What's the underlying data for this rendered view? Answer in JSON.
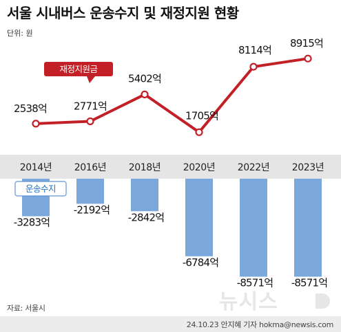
{
  "header": {
    "title": "서울 시내버스 운송수지 및 재정지원 현황",
    "unit": "단위: 원"
  },
  "chart_data": {
    "type": "line+bar",
    "categories": [
      "2014년",
      "2016년",
      "2018년",
      "2020년",
      "2022년",
      "2023년"
    ],
    "series": [
      {
        "name": "재정지원금",
        "type": "line",
        "values": [
          2538,
          2771,
          5402,
          1705,
          8114,
          8915
        ],
        "labels": [
          "2538억",
          "2771억",
          "5402억",
          "1705억",
          "8114억",
          "8915억"
        ],
        "color": "#c22026"
      },
      {
        "name": "운송수지",
        "type": "bar",
        "values": [
          -3283,
          -2192,
          -2842,
          -6784,
          -8571,
          -8571
        ],
        "labels": [
          "-3283억",
          "-2192억",
          "-2842억",
          "-6784억",
          "-8571억",
          "-8571억"
        ],
        "color": "#7aa7dc"
      }
    ]
  },
  "footer": {
    "source": "자료: 서울시",
    "credit": "24.10.23 안지혜 기자 hokma@newsis.com",
    "watermark": "뉴시스"
  }
}
